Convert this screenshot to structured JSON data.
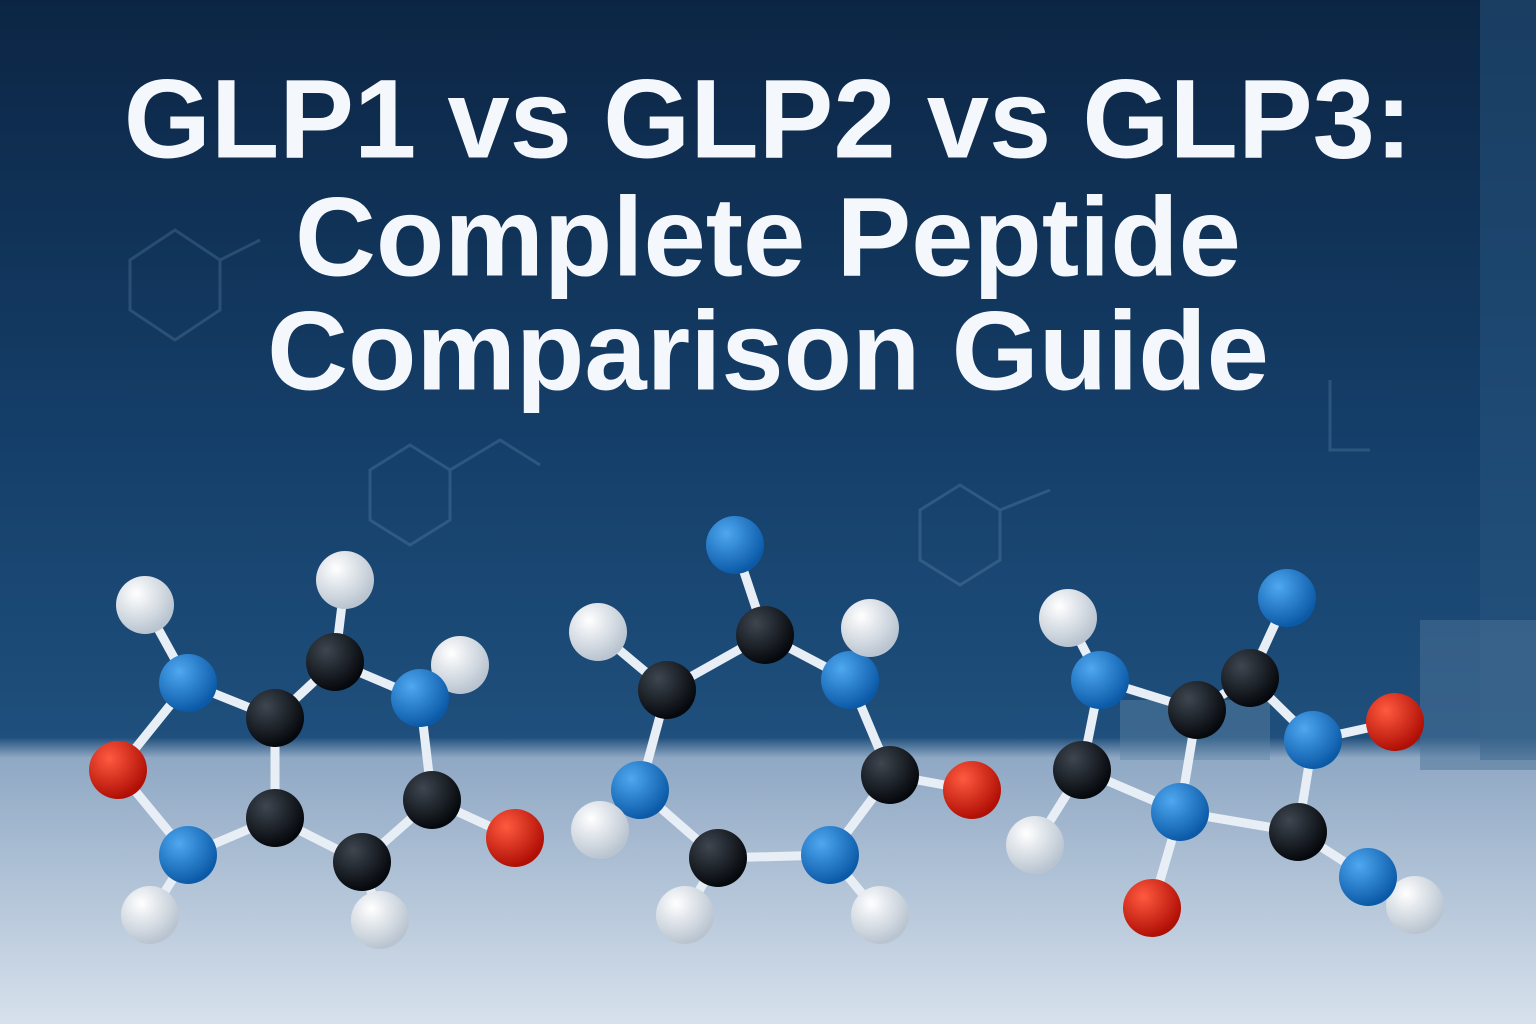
{
  "title": {
    "lines": [
      "GLP1 vs GLP2 vs GLP3:",
      "Complete Peptide",
      "Comparison Guide"
    ]
  }
}
